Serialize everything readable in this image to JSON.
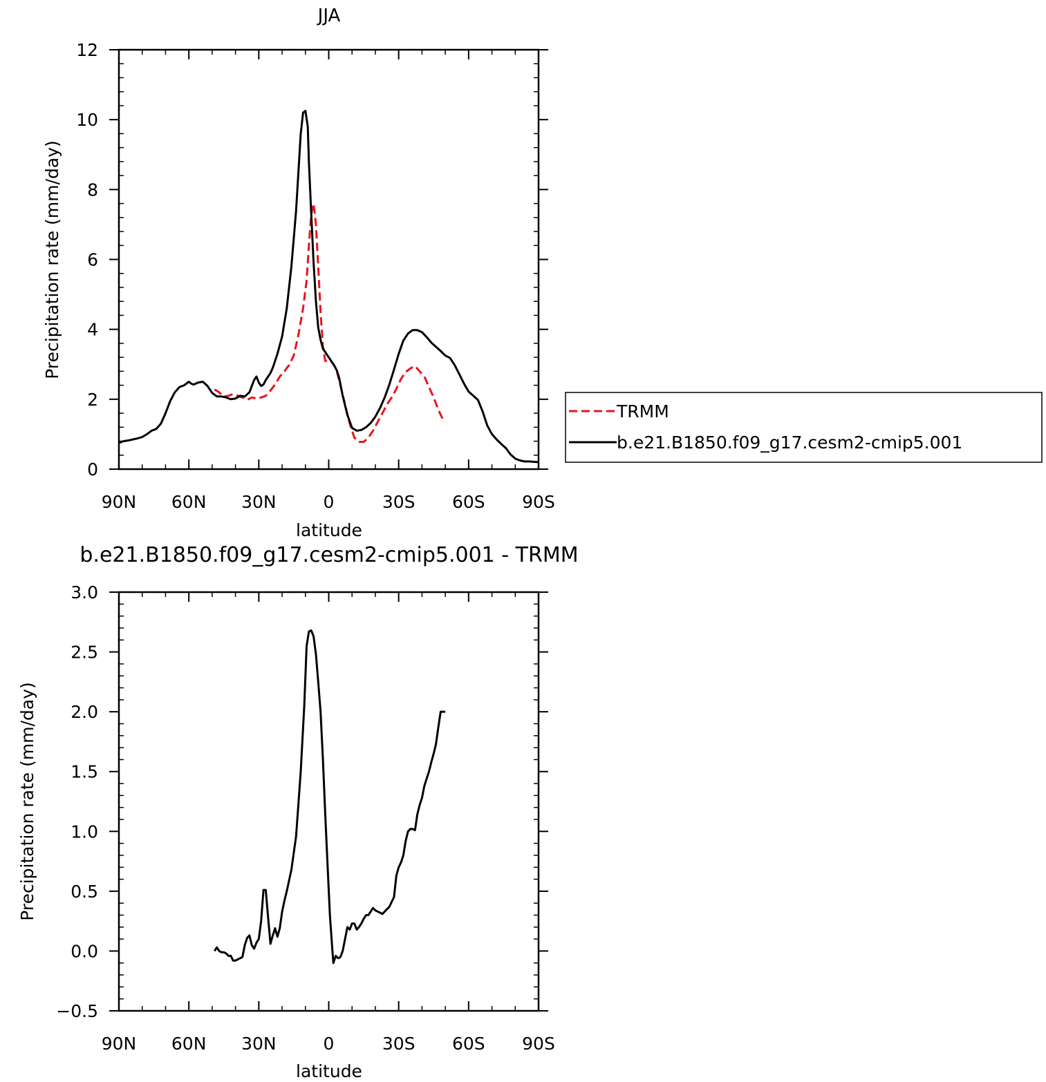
{
  "chart_data": [
    {
      "type": "line",
      "title": "JJA",
      "xlabel": "latitude",
      "ylabel": "Precipitation rate (mm/day)",
      "xlim": [
        90,
        -90
      ],
      "ylim": [
        0,
        12
      ],
      "x_ticks": [
        90,
        60,
        30,
        0,
        -30,
        -60,
        -90
      ],
      "x_tick_labels": [
        "90N",
        "60N",
        "30N",
        "0",
        "30S",
        "60S",
        "90S"
      ],
      "y_ticks": [
        0,
        2,
        4,
        6,
        8,
        10,
        12
      ],
      "y_tick_labels": [
        "0",
        "2",
        "4",
        "6",
        "8",
        "10",
        "12"
      ],
      "grid": false,
      "legend": "right",
      "series": [
        {
          "name": "TRMM",
          "color": "#e8141c",
          "style": "dashed",
          "x": [
            49,
            47,
            45,
            43,
            41,
            39,
            37,
            35,
            33,
            31,
            29,
            27,
            25,
            23,
            21,
            19,
            17,
            15,
            13,
            11,
            9.5,
            8.5,
            7.5,
            6.5,
            5.5,
            4.5,
            3.5,
            2.5,
            1.5,
            0.5,
            -0.5,
            -1.5,
            -2.5,
            -3.5,
            -5,
            -7,
            -9,
            -11,
            -13,
            -15,
            -17,
            -19,
            -21,
            -23,
            -25,
            -27,
            -29,
            -31,
            -33,
            -35,
            -37,
            -39,
            -41,
            -43,
            -45,
            -47,
            -49
          ],
          "y": [
            2.28,
            2.2,
            2.08,
            2.1,
            2.15,
            2.1,
            2.05,
            1.98,
            2.05,
            2.02,
            2.05,
            2.1,
            2.25,
            2.42,
            2.65,
            2.8,
            2.98,
            3.25,
            3.85,
            4.6,
            5.4,
            6.4,
            7.3,
            7.6,
            7.0,
            5.8,
            4.5,
            3.5,
            3.1,
            3.1,
            3.12,
            3.05,
            2.95,
            2.8,
            2.4,
            1.85,
            1.3,
            0.9,
            0.78,
            0.78,
            0.9,
            1.1,
            1.35,
            1.6,
            1.85,
            2.05,
            2.3,
            2.58,
            2.78,
            2.88,
            2.95,
            2.8,
            2.65,
            2.35,
            2.05,
            1.7,
            1.42
          ]
        },
        {
          "name": "b.e21.B1850.f09_g17.cesm2-cmip5.001",
          "color": "#000000",
          "style": "solid",
          "x": [
            90,
            88,
            86,
            84,
            82,
            80,
            78,
            76,
            74,
            72,
            70,
            68,
            66,
            64,
            62,
            60,
            59,
            58,
            57,
            56,
            54,
            52,
            50,
            48,
            46,
            44,
            42,
            40,
            38,
            36,
            34,
            32,
            31,
            30,
            29,
            28,
            27,
            26,
            25,
            24,
            22,
            20,
            18,
            16,
            14,
            12,
            11,
            10,
            9,
            8.5,
            7.5,
            6.5,
            5.5,
            4.5,
            3.5,
            2.5,
            1.5,
            0.5,
            -0.5,
            -1.5,
            -2.5,
            -3.5,
            -4.5,
            -6,
            -8,
            -10,
            -12,
            -14,
            -16,
            -18,
            -20,
            -22,
            -24,
            -26,
            -28,
            -30,
            -32,
            -34,
            -36,
            -38,
            -40,
            -42,
            -44,
            -46,
            -48,
            -50,
            -52,
            -54,
            -56,
            -58,
            -60,
            -62,
            -64,
            -66,
            -68,
            -70,
            -72,
            -74,
            -76,
            -78,
            -80,
            -82,
            -84,
            -86,
            -88,
            -90
          ],
          "y": [
            0.75,
            0.8,
            0.82,
            0.85,
            0.88,
            0.92,
            1.0,
            1.1,
            1.15,
            1.3,
            1.6,
            1.95,
            2.2,
            2.35,
            2.4,
            2.5,
            2.45,
            2.42,
            2.45,
            2.48,
            2.5,
            2.38,
            2.18,
            2.08,
            2.08,
            2.05,
            2.0,
            2.02,
            2.1,
            2.08,
            2.2,
            2.55,
            2.65,
            2.48,
            2.38,
            2.42,
            2.55,
            2.65,
            2.75,
            2.9,
            3.3,
            3.8,
            4.6,
            5.8,
            7.4,
            9.6,
            10.2,
            10.25,
            9.8,
            8.8,
            7.3,
            5.9,
            4.8,
            4.05,
            3.7,
            3.45,
            3.35,
            3.25,
            3.15,
            3.05,
            2.95,
            2.82,
            2.6,
            2.1,
            1.55,
            1.18,
            1.1,
            1.12,
            1.2,
            1.32,
            1.5,
            1.75,
            2.05,
            2.42,
            2.85,
            3.3,
            3.68,
            3.88,
            3.98,
            3.98,
            3.92,
            3.78,
            3.62,
            3.5,
            3.38,
            3.25,
            3.18,
            2.98,
            2.72,
            2.45,
            2.22,
            2.1,
            1.98,
            1.65,
            1.25,
            1.0,
            0.85,
            0.72,
            0.6,
            0.42,
            0.3,
            0.25,
            0.22,
            0.22,
            0.21,
            0.2
          ]
        }
      ]
    },
    {
      "type": "line",
      "title": "b.e21.B1850.f09_g17.cesm2-cmip5.001 - TRMM",
      "xlabel": "latitude",
      "ylabel": "Precipitation rate (mm/day)",
      "xlim": [
        90,
        -90
      ],
      "ylim": [
        -0.5,
        3.0
      ],
      "x_ticks": [
        90,
        60,
        30,
        0,
        -30,
        -60,
        -90
      ],
      "x_tick_labels": [
        "90N",
        "60N",
        "30N",
        "0",
        "30S",
        "60S",
        "90S"
      ],
      "y_ticks": [
        -0.5,
        0.0,
        0.5,
        1.0,
        1.5,
        2.0,
        2.5,
        3.0
      ],
      "y_tick_labels": [
        "−0.5",
        "0.0",
        "0.5",
        "1.0",
        "1.5",
        "2.0",
        "2.5",
        "3.0"
      ],
      "grid": false,
      "series": [
        {
          "color": "#000000",
          "style": "solid",
          "x": [
            49,
            48,
            47,
            46,
            45,
            44,
            43,
            42,
            41,
            40,
            39,
            38,
            37,
            36,
            35,
            34,
            33,
            32,
            31,
            30,
            29,
            28,
            27,
            26,
            25,
            24,
            23,
            22,
            21,
            20,
            19,
            18,
            16,
            14,
            12,
            10.5,
            9.5,
            8.5,
            7.5,
            6.5,
            5.5,
            4.5,
            3.5,
            2.5,
            1.5,
            0.5,
            -0.5,
            -1.5,
            -2,
            -3,
            -4,
            -5,
            -6,
            -7,
            -8,
            -9,
            -10,
            -11,
            -12,
            -13,
            -14,
            -15,
            -16,
            -17,
            -18,
            -19,
            -20,
            -21,
            -22,
            -23,
            -24,
            -25,
            -26,
            -27,
            -28,
            -29,
            -30,
            -31,
            -32,
            -33,
            -34,
            -35,
            -36,
            -37,
            -38,
            -39,
            -40,
            -41,
            -42,
            -43,
            -44,
            -45,
            -46,
            -47,
            -48,
            -49,
            -50
          ],
          "y": [
            0.0,
            0.03,
            0.0,
            -0.01,
            -0.01,
            -0.02,
            -0.04,
            -0.04,
            -0.08,
            -0.08,
            -0.07,
            -0.06,
            -0.05,
            0.05,
            0.11,
            0.13,
            0.05,
            0.02,
            0.07,
            0.1,
            0.25,
            0.51,
            0.51,
            0.28,
            0.06,
            0.13,
            0.19,
            0.12,
            0.19,
            0.33,
            0.42,
            0.5,
            0.68,
            0.96,
            1.5,
            2.05,
            2.55,
            2.67,
            2.68,
            2.63,
            2.48,
            2.25,
            2.0,
            1.6,
            1.15,
            0.72,
            0.3,
            0.02,
            -0.1,
            -0.04,
            -0.06,
            -0.05,
            0.0,
            0.1,
            0.2,
            0.18,
            0.23,
            0.23,
            0.18,
            0.2,
            0.23,
            0.27,
            0.3,
            0.3,
            0.33,
            0.36,
            0.34,
            0.33,
            0.32,
            0.31,
            0.33,
            0.35,
            0.37,
            0.41,
            0.45,
            0.63,
            0.7,
            0.74,
            0.8,
            0.92,
            1.0,
            1.02,
            1.02,
            1.01,
            1.14,
            1.22,
            1.28,
            1.38,
            1.44,
            1.5,
            1.58,
            1.65,
            1.73,
            1.87,
            2.0,
            2.0,
            2.0
          ]
        }
      ]
    }
  ]
}
